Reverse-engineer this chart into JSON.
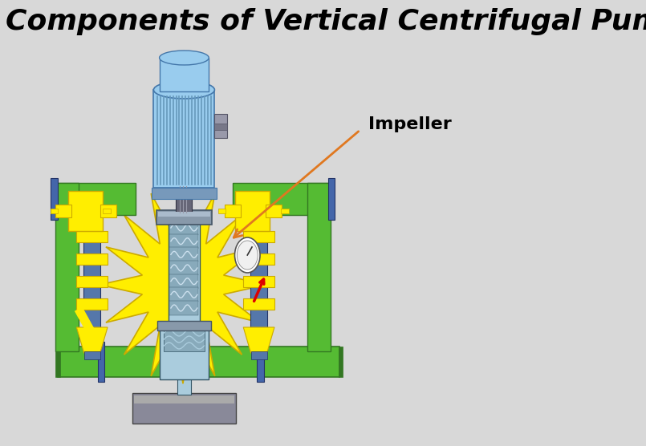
{
  "title": "Components of Vertical Centrifugal Pump",
  "title_fontsize": 26,
  "title_style": "italic",
  "title_weight": "bold",
  "bg_color": "#d8d8d8",
  "label_text": "Impeller",
  "label_fontsize": 16,
  "label_fontweight": "bold",
  "arrow_color": "#e07820",
  "green_pipe_color": "#55bb33",
  "yellow_color": "#ffee00",
  "blue_motor_light": "#99ccee",
  "blue_motor_dark": "#77aacc",
  "blue_pump_body": "#88aabb",
  "blue_pump_light": "#aaccdd",
  "gray_collar": "#8899aa",
  "dark_gray_cap": "#666677",
  "steel_blue": "#4466aa",
  "red_arrow": "#dd0000",
  "base_gray": "#888899",
  "yellow_dark": "#ccaa00",
  "green_dark": "#337722",
  "blue_pipe": "#5577aa"
}
